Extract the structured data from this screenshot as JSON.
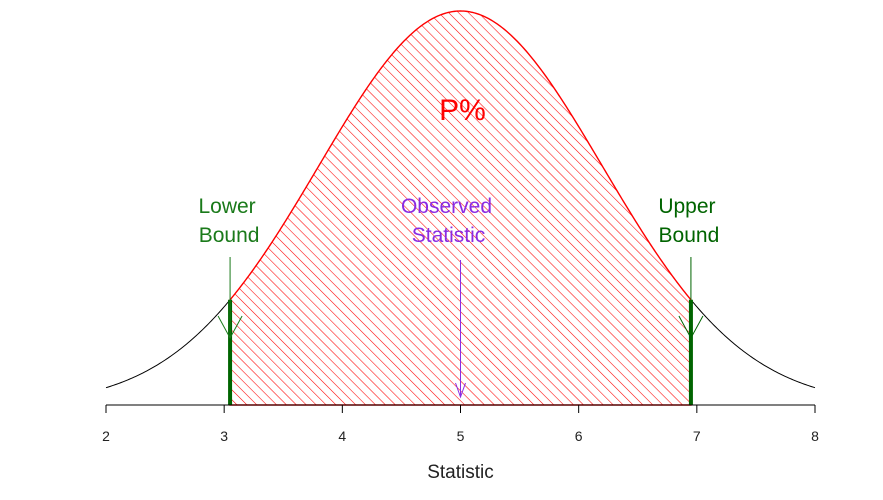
{
  "chart_data": {
    "type": "area",
    "distribution": "normal",
    "mean": 5,
    "sd": 1.2,
    "xlim": [
      2,
      8
    ],
    "x_ticks": [
      2,
      3,
      4,
      5,
      6,
      7,
      8
    ],
    "xlabel": "Statistic",
    "shaded_region": {
      "from": 3.05,
      "to": 6.95,
      "label": "P%",
      "color": "#ff0000",
      "fill_pattern": "diagonal-hatch"
    },
    "annotations": {
      "lower_bound": {
        "x": 3.05,
        "label_line1": "Lower",
        "label_line2": "Bound",
        "color": "#1a7a1a"
      },
      "upper_bound": {
        "x": 6.95,
        "label_line1": "Upper",
        "label_line2": "Bound",
        "color": "#006400"
      },
      "observed": {
        "x": 5,
        "label_line1": "Observed",
        "label_line2": "Statistic",
        "color": "#8a2be2"
      }
    },
    "colors": {
      "curve": "#000000",
      "bound_bar": "#006400",
      "axis": "#000000"
    }
  }
}
